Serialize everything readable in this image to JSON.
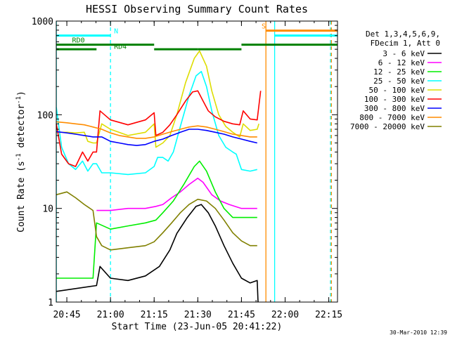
{
  "chart_data": {
    "type": "line",
    "title": "HESSI Observing Summary Count Rates",
    "xlabel": "Start Time (23-Jun-05 20:41:22)",
    "ylabel_main": "Count Rate (s",
    "ylabel_sup1": "-1",
    "ylabel_mid": " detector",
    "ylabel_sup2": "-1",
    "ylabel_end": ")",
    "ylog": true,
    "xlim": [
      20.6894,
      22.3
    ],
    "ylim": [
      1,
      1000
    ],
    "xticks": [
      {
        "value": 20.75,
        "label": "20:45"
      },
      {
        "value": 21.0,
        "label": "21:00"
      },
      {
        "value": 21.25,
        "label": "21:15"
      },
      {
        "value": 21.5,
        "label": "21:30"
      },
      {
        "value": 21.75,
        "label": "21:45"
      },
      {
        "value": 22.0,
        "label": "22:00"
      },
      {
        "value": 22.25,
        "label": "22:15"
      }
    ],
    "yticks": [
      {
        "value": 1,
        "label": "1"
      },
      {
        "value": 10,
        "label": "10"
      },
      {
        "value": 100,
        "label": "100"
      },
      {
        "value": 1000,
        "label": "1000"
      }
    ],
    "legend": {
      "header1": "Det 1,3,4,5,6,9,",
      "header2": "FDecim 1, Att 0",
      "placement": "right"
    },
    "series": [
      {
        "name": "3 - 6 keV",
        "color": "#000000",
        "points": [
          [
            20.69,
            1.3
          ],
          [
            20.92,
            1.5
          ],
          [
            20.94,
            2.4
          ],
          [
            21.0,
            1.8
          ],
          [
            21.1,
            1.7
          ],
          [
            21.2,
            1.9
          ],
          [
            21.28,
            2.4
          ],
          [
            21.34,
            3.6
          ],
          [
            21.38,
            5.4
          ],
          [
            21.44,
            8.0
          ],
          [
            21.49,
            10.5
          ],
          [
            21.52,
            11.0
          ],
          [
            21.56,
            9.0
          ],
          [
            21.6,
            6.5
          ],
          [
            21.65,
            4.0
          ],
          [
            21.7,
            2.6
          ],
          [
            21.75,
            1.8
          ],
          [
            21.8,
            1.6
          ],
          [
            21.84,
            1.7
          ],
          [
            21.845,
            1.0
          ]
        ]
      },
      {
        "name": "6 - 12 keV",
        "color": "#ff00ff",
        "points": [
          [
            20.92,
            9.5
          ],
          [
            21.0,
            9.5
          ],
          [
            21.1,
            10.0
          ],
          [
            21.2,
            10.0
          ],
          [
            21.26,
            10.5
          ],
          [
            21.3,
            11.0
          ],
          [
            21.35,
            13.0
          ],
          [
            21.4,
            15.0
          ],
          [
            21.45,
            18.0
          ],
          [
            21.5,
            21.0
          ],
          [
            21.53,
            19.0
          ],
          [
            21.58,
            14.0
          ],
          [
            21.63,
            12.0
          ],
          [
            21.68,
            11.0
          ],
          [
            21.75,
            10.0
          ],
          [
            21.8,
            10.0
          ],
          [
            21.84,
            10.0
          ]
        ]
      },
      {
        "name": "12 - 25 keV",
        "color": "#00ee00",
        "points": [
          [
            20.69,
            1.8
          ],
          [
            20.77,
            1.8
          ],
          [
            20.9,
            1.8
          ],
          [
            20.92,
            7.0
          ],
          [
            21.0,
            6.0
          ],
          [
            21.1,
            6.5
          ],
          [
            21.2,
            7.0
          ],
          [
            21.26,
            7.5
          ],
          [
            21.3,
            9.0
          ],
          [
            21.36,
            12.0
          ],
          [
            21.42,
            18.0
          ],
          [
            21.48,
            28.0
          ],
          [
            21.51,
            32.0
          ],
          [
            21.55,
            25.0
          ],
          [
            21.6,
            15.0
          ],
          [
            21.65,
            10.0
          ],
          [
            21.7,
            8.0
          ],
          [
            21.75,
            8.0
          ],
          [
            21.8,
            8.0
          ],
          [
            21.84,
            8.0
          ]
        ]
      },
      {
        "name": "25 - 50 keV",
        "color": "#00ffff",
        "points": [
          [
            20.69,
            120
          ],
          [
            20.72,
            45
          ],
          [
            20.76,
            30
          ],
          [
            20.8,
            26
          ],
          [
            20.84,
            32
          ],
          [
            20.87,
            25
          ],
          [
            20.9,
            30
          ],
          [
            20.92,
            30
          ],
          [
            20.95,
            24
          ],
          [
            21.0,
            24
          ],
          [
            21.1,
            23
          ],
          [
            21.2,
            24
          ],
          [
            21.25,
            28
          ],
          [
            21.27,
            35
          ],
          [
            21.3,
            35
          ],
          [
            21.33,
            32
          ],
          [
            21.36,
            40
          ],
          [
            21.4,
            75
          ],
          [
            21.45,
            160
          ],
          [
            21.49,
            260
          ],
          [
            21.52,
            290
          ],
          [
            21.55,
            200
          ],
          [
            21.58,
            110
          ],
          [
            21.62,
            60
          ],
          [
            21.66,
            45
          ],
          [
            21.7,
            40
          ],
          [
            21.72,
            38
          ],
          [
            21.75,
            26
          ],
          [
            21.8,
            25
          ],
          [
            21.84,
            26
          ]
        ]
      },
      {
        "name": "50 - 100 keV",
        "color": "#dddd00",
        "points": [
          [
            20.69,
            65
          ],
          [
            20.75,
            65
          ],
          [
            20.8,
            64
          ],
          [
            20.85,
            65
          ],
          [
            20.87,
            52
          ],
          [
            20.9,
            50
          ],
          [
            20.92,
            50
          ],
          [
            20.95,
            80
          ],
          [
            21.0,
            70
          ],
          [
            21.1,
            60
          ],
          [
            21.2,
            65
          ],
          [
            21.25,
            80
          ],
          [
            21.26,
            45
          ],
          [
            21.3,
            50
          ],
          [
            21.34,
            60
          ],
          [
            21.38,
            100
          ],
          [
            21.43,
            220
          ],
          [
            21.48,
            400
          ],
          [
            21.51,
            480
          ],
          [
            21.55,
            330
          ],
          [
            21.58,
            180
          ],
          [
            21.62,
            100
          ],
          [
            21.66,
            75
          ],
          [
            21.7,
            65
          ],
          [
            21.74,
            58
          ],
          [
            21.76,
            80
          ],
          [
            21.8,
            68
          ],
          [
            21.84,
            70
          ],
          [
            21.85,
            80
          ]
        ]
      },
      {
        "name": "100 - 300 keV",
        "color": "#ff0000",
        "points": [
          [
            20.69,
            80
          ],
          [
            20.72,
            38
          ],
          [
            20.76,
            30
          ],
          [
            20.8,
            28
          ],
          [
            20.84,
            40
          ],
          [
            20.87,
            32
          ],
          [
            20.9,
            40
          ],
          [
            20.92,
            40
          ],
          [
            20.94,
            110
          ],
          [
            21.0,
            88
          ],
          [
            21.1,
            78
          ],
          [
            21.2,
            88
          ],
          [
            21.25,
            105
          ],
          [
            21.26,
            60
          ],
          [
            21.3,
            65
          ],
          [
            21.34,
            78
          ],
          [
            21.38,
            100
          ],
          [
            21.43,
            140
          ],
          [
            21.47,
            175
          ],
          [
            21.5,
            180
          ],
          [
            21.53,
            140
          ],
          [
            21.56,
            110
          ],
          [
            21.6,
            95
          ],
          [
            21.65,
            85
          ],
          [
            21.7,
            80
          ],
          [
            21.74,
            78
          ],
          [
            21.76,
            110
          ],
          [
            21.8,
            90
          ],
          [
            21.84,
            88
          ],
          [
            21.86,
            180
          ]
        ]
      },
      {
        "name": "300 - 800 keV",
        "color": "#0000ff",
        "points": [
          [
            20.69,
            66
          ],
          [
            20.75,
            64
          ],
          [
            20.8,
            62
          ],
          [
            20.85,
            60
          ],
          [
            20.9,
            58
          ],
          [
            20.95,
            58
          ],
          [
            21.0,
            52
          ],
          [
            21.05,
            50
          ],
          [
            21.1,
            48
          ],
          [
            21.15,
            47
          ],
          [
            21.2,
            48
          ],
          [
            21.25,
            52
          ],
          [
            21.3,
            55
          ],
          [
            21.35,
            60
          ],
          [
            21.4,
            65
          ],
          [
            21.45,
            70
          ],
          [
            21.5,
            70
          ],
          [
            21.55,
            68
          ],
          [
            21.6,
            65
          ],
          [
            21.65,
            62
          ],
          [
            21.7,
            58
          ],
          [
            21.75,
            55
          ],
          [
            21.8,
            52
          ],
          [
            21.84,
            50
          ]
        ]
      },
      {
        "name": "800 - 7000 keV",
        "color": "#ff8c00",
        "points": [
          [
            20.69,
            84
          ],
          [
            20.75,
            82
          ],
          [
            20.8,
            80
          ],
          [
            20.85,
            78
          ],
          [
            20.9,
            74
          ],
          [
            20.95,
            70
          ],
          [
            21.0,
            64
          ],
          [
            21.05,
            60
          ],
          [
            21.1,
            58
          ],
          [
            21.15,
            56
          ],
          [
            21.2,
            56
          ],
          [
            21.25,
            58
          ],
          [
            21.3,
            62
          ],
          [
            21.35,
            66
          ],
          [
            21.4,
            70
          ],
          [
            21.45,
            74
          ],
          [
            21.5,
            76
          ],
          [
            21.55,
            74
          ],
          [
            21.6,
            70
          ],
          [
            21.65,
            66
          ],
          [
            21.7,
            62
          ],
          [
            21.75,
            60
          ],
          [
            21.8,
            58
          ],
          [
            21.84,
            58
          ]
        ]
      },
      {
        "name": "7000 - 20000 keV",
        "color": "#808000",
        "points": [
          [
            20.69,
            14
          ],
          [
            20.75,
            15
          ],
          [
            20.8,
            13
          ],
          [
            20.85,
            11
          ],
          [
            20.9,
            9.5
          ],
          [
            20.92,
            5.0
          ],
          [
            20.95,
            4.0
          ],
          [
            21.0,
            3.6
          ],
          [
            21.1,
            3.8
          ],
          [
            21.2,
            4.0
          ],
          [
            21.25,
            4.4
          ],
          [
            21.3,
            5.5
          ],
          [
            21.35,
            7.0
          ],
          [
            21.4,
            9.0
          ],
          [
            21.45,
            11.0
          ],
          [
            21.5,
            12.5
          ],
          [
            21.55,
            12.0
          ],
          [
            21.6,
            10.0
          ],
          [
            21.65,
            7.5
          ],
          [
            21.7,
            5.5
          ],
          [
            21.75,
            4.5
          ],
          [
            21.8,
            4.0
          ],
          [
            21.84,
            4.0
          ]
        ]
      }
    ],
    "vlines": [
      {
        "x": 20.69,
        "color": "#00ffff",
        "style": "solid"
      },
      {
        "x": 21.0,
        "color": "#00ffff",
        "style": "dashed"
      },
      {
        "x": 21.89,
        "color": "#ff8c00",
        "style": "solid"
      },
      {
        "x": 21.94,
        "color": "#00ffff",
        "style": "solid"
      },
      {
        "x": 22.26,
        "color": "#00ffff",
        "style": "dashed"
      },
      {
        "x": 22.265,
        "color": "#ff8c00",
        "style": "dashed"
      }
    ],
    "bars": [
      {
        "x1": 20.69,
        "x2": 21.0,
        "y": 700,
        "color": "#00ffff"
      },
      {
        "x1": 20.69,
        "x2": 21.25,
        "y": 560,
        "color": "#008000"
      },
      {
        "x1": 21.25,
        "x2": 21.5,
        "y": 500,
        "color": "#008000"
      },
      {
        "x1": 21.5,
        "x2": 21.75,
        "y": 500,
        "color": "#008000"
      },
      {
        "x1": 21.75,
        "x2": 22.3,
        "y": 560,
        "color": "#008000"
      },
      {
        "x1": 20.69,
        "x2": 20.92,
        "y": 500,
        "color": "#008000"
      },
      {
        "x1": 21.89,
        "x2": 22.3,
        "y": 790,
        "color": "#ff8c00"
      },
      {
        "x1": 21.94,
        "x2": 22.3,
        "y": 700,
        "color": "#00ffff"
      }
    ],
    "annotations": [
      {
        "text": "RD0",
        "x": 20.78,
        "y": 560,
        "color": "#008000"
      },
      {
        "text": "N",
        "x": 21.02,
        "y": 700,
        "color": "#00ffff"
      },
      {
        "text": "RD4",
        "x": 21.02,
        "y": 480,
        "color": "#008000"
      },
      {
        "text": "S",
        "x": 21.865,
        "y": 790,
        "color": "#ff8c00"
      }
    ]
  },
  "footer": {
    "timestamp": "30-Mar-2010 12:39"
  }
}
